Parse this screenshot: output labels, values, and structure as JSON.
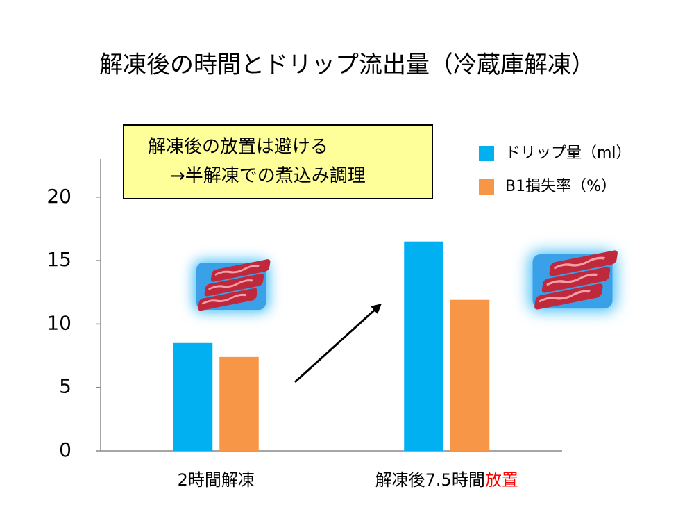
{
  "chart_data": {
    "type": "bar",
    "title": "解凍後の時間とドリップ流出量（冷蔵庫解凍）",
    "annotation": [
      "解凍後の放置は避ける",
      "→半解凍での煮込み調理"
    ],
    "categories": [
      "2時間解凍",
      "解凍後7.5時間放置"
    ],
    "category_emphasis": {
      "category": 1,
      "from": 8,
      "color": "#ff0000"
    },
    "series": [
      {
        "name": "ドリップ量（ml）",
        "color": "#00b0f0",
        "values": [
          8.5,
          16.5
        ]
      },
      {
        "name": "B1損失率（%）",
        "color": "#f79646",
        "values": [
          7.4,
          11.9
        ]
      }
    ],
    "ylim": [
      0,
      23
    ],
    "yticks": [
      0,
      5,
      10,
      15,
      20
    ],
    "grid": false,
    "legend": "top-right"
  }
}
